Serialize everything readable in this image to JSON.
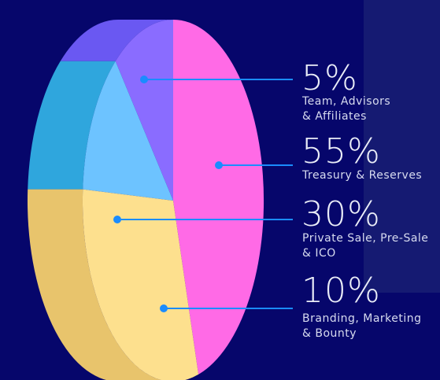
{
  "chart_data": {
    "type": "pie",
    "slices": [
      {
        "value_label": "5%",
        "value": 5,
        "label": "Team, Advisors\n& Affiliates",
        "color": "#8a6cff",
        "side_color": "#6a58f2"
      },
      {
        "value_label": "55%",
        "value": 55,
        "label": "Treasury & Reserves",
        "color": "#ff6ae6",
        "side_color": "#d94fc5"
      },
      {
        "value_label": "30%",
        "value": 30,
        "label": "Private Sale, Pre-Sale\n& ICO",
        "color": "#6dc3ff",
        "side_color": "#2fa6dd"
      },
      {
        "value_label": "10%",
        "value": 10,
        "label": "Branding, Marketing\n& Bounty",
        "color": "#fde08e",
        "side_color": "#e8c46c"
      }
    ],
    "legend_placement": "right"
  },
  "colors": {
    "background": "#06066b",
    "panel": "#151a72",
    "leader_line": "#1a8cff",
    "text": "#e9ecf7"
  }
}
